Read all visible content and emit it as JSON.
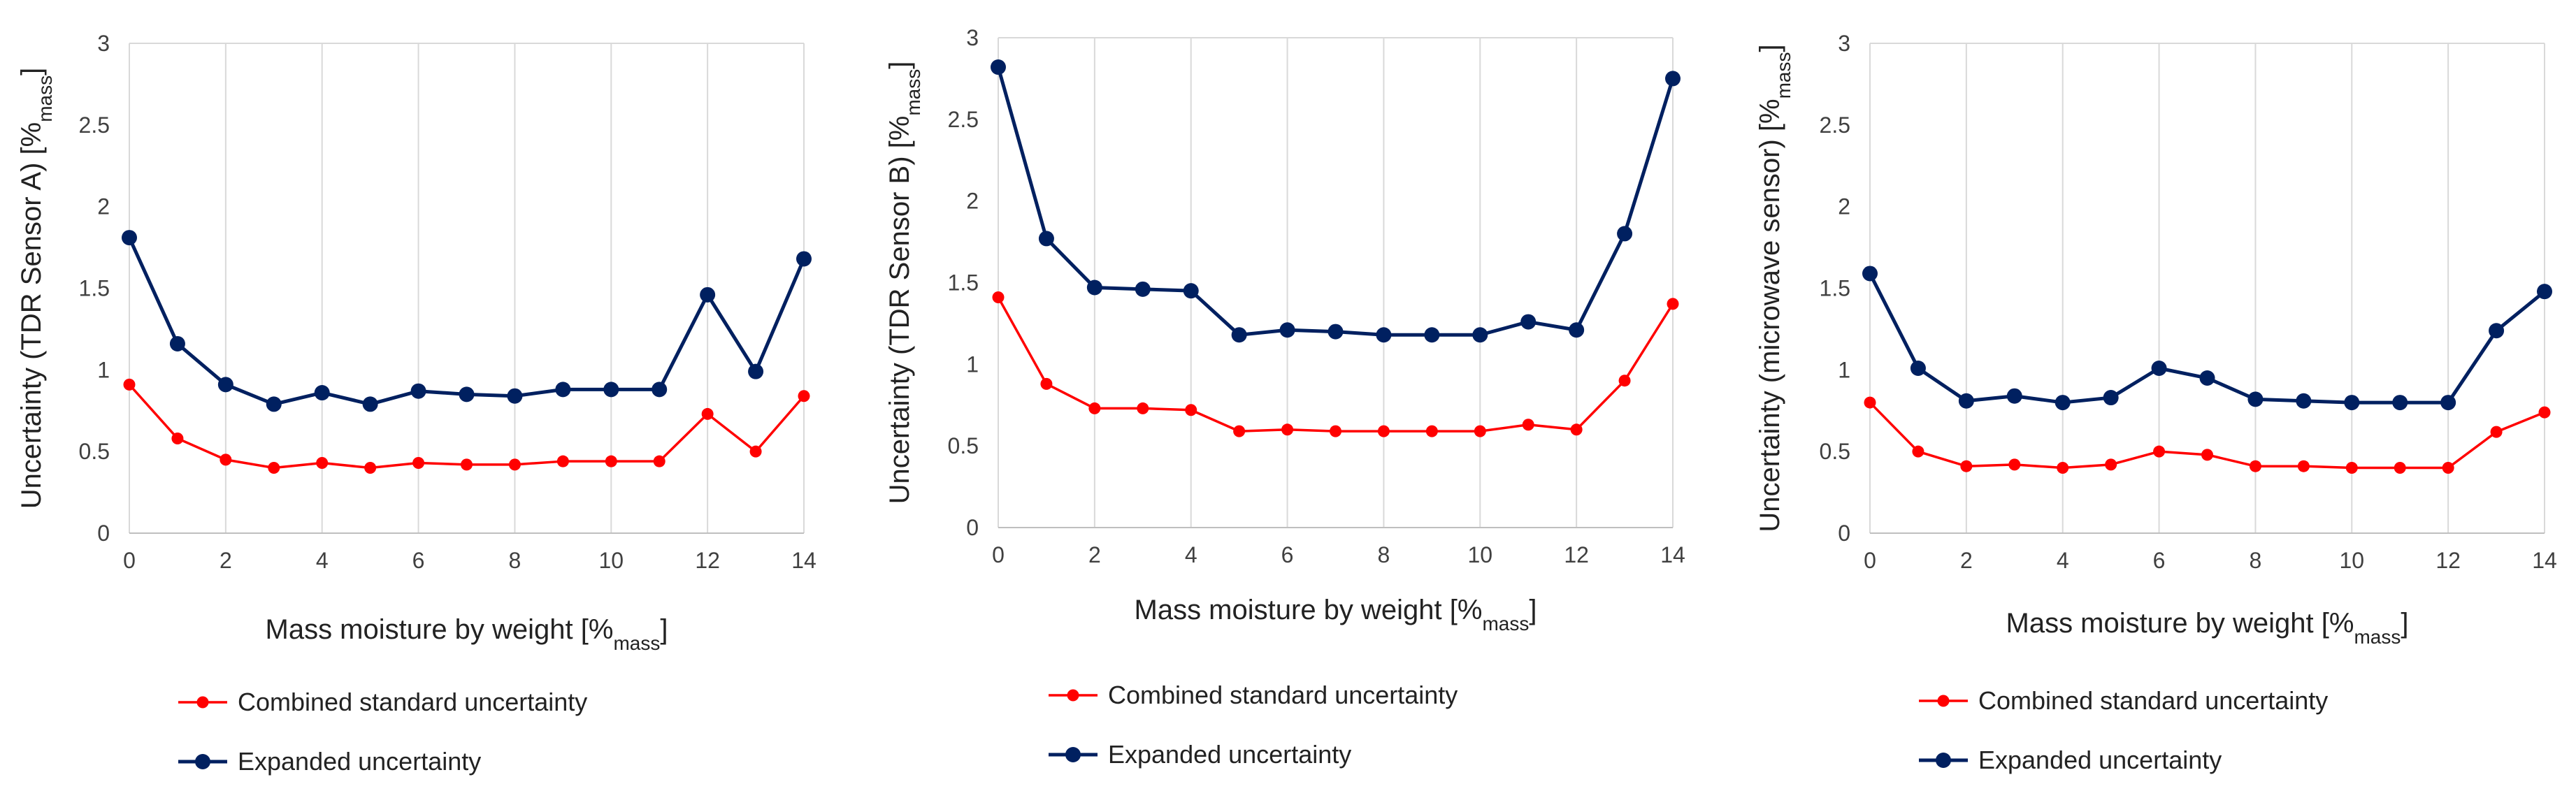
{
  "chart_data": [
    {
      "type": "line",
      "title": "",
      "xlabel": "Mass moisture by weight [%",
      "xlabel_sub": "mass",
      "xlabel_end": "]",
      "ylabel": "Uncertainty (TDR Sensor A) [%",
      "ylabel_sub": "mass",
      "ylabel_end": "]",
      "xlim": [
        0,
        14
      ],
      "ylim": [
        0,
        3
      ],
      "grid": "vertical",
      "x_ticks": [
        "0",
        "2",
        "4",
        "6",
        "8",
        "10",
        "12",
        "14"
      ],
      "y_ticks": [
        "0",
        "0.5",
        "1",
        "1.5",
        "2",
        "2.5",
        "3"
      ],
      "x": [
        0,
        1,
        2,
        3,
        4,
        5,
        6,
        7,
        8,
        9,
        10,
        11,
        12,
        13,
        14
      ],
      "legend_position": "bottom",
      "series": [
        {
          "name": "Combined standard uncertainty",
          "color": "#ff0000",
          "values": [
            0.91,
            0.58,
            0.45,
            0.4,
            0.43,
            0.4,
            0.43,
            0.42,
            0.42,
            0.44,
            0.44,
            0.44,
            0.73,
            0.5,
            0.84
          ]
        },
        {
          "name": "Expanded uncertainty",
          "color": "#002060",
          "values": [
            1.81,
            1.16,
            0.91,
            0.79,
            0.86,
            0.79,
            0.87,
            0.85,
            0.84,
            0.88,
            0.88,
            0.88,
            1.46,
            0.99,
            1.68
          ]
        }
      ]
    },
    {
      "type": "line",
      "title": "",
      "xlabel": "Mass moisture by weight [%",
      "xlabel_sub": "mass",
      "xlabel_end": "]",
      "ylabel": "Uncertainty (TDR Sensor B) [%",
      "ylabel_sub": "mass",
      "ylabel_end": "]",
      "xlim": [
        0,
        14
      ],
      "ylim": [
        0,
        3
      ],
      "grid": "vertical",
      "x_ticks": [
        "0",
        "2",
        "4",
        "6",
        "8",
        "10",
        "12",
        "14"
      ],
      "y_ticks": [
        "0",
        "0.5",
        "1",
        "1.5",
        "2",
        "2.5",
        "3"
      ],
      "x": [
        0,
        1,
        2,
        3,
        4,
        5,
        6,
        7,
        8,
        9,
        10,
        11,
        12,
        13,
        14
      ],
      "legend_position": "bottom",
      "series": [
        {
          "name": "Combined standard uncertainty",
          "color": "#ff0000",
          "values": [
            1.41,
            0.88,
            0.73,
            0.73,
            0.72,
            0.59,
            0.6,
            0.59,
            0.59,
            0.59,
            0.59,
            0.63,
            0.6,
            0.9,
            1.37
          ]
        },
        {
          "name": "Expanded uncertainty",
          "color": "#002060",
          "values": [
            2.82,
            1.77,
            1.47,
            1.46,
            1.45,
            1.18,
            1.21,
            1.2,
            1.18,
            1.18,
            1.18,
            1.26,
            1.21,
            1.8,
            2.75
          ]
        }
      ]
    },
    {
      "type": "line",
      "title": "",
      "xlabel": "Mass moisture by weight [%",
      "xlabel_sub": "mass",
      "xlabel_end": "]",
      "ylabel": "Uncertainty (microwave sensor) [%",
      "ylabel_sub": "mass",
      "ylabel_end": "]",
      "xlim": [
        0,
        14
      ],
      "ylim": [
        0,
        3
      ],
      "grid": "vertical",
      "x_ticks": [
        "0",
        "2",
        "4",
        "6",
        "8",
        "10",
        "12",
        "14"
      ],
      "y_ticks": [
        "0",
        "0.5",
        "1",
        "1.5",
        "2",
        "2.5",
        "3"
      ],
      "x": [
        0,
        1,
        2,
        3,
        4,
        5,
        6,
        7,
        8,
        9,
        10,
        11,
        12,
        13,
        14
      ],
      "legend_position": "bottom",
      "series": [
        {
          "name": "Combined standard uncertainty",
          "color": "#ff0000",
          "values": [
            0.8,
            0.5,
            0.41,
            0.42,
            0.4,
            0.42,
            0.5,
            0.48,
            0.41,
            0.41,
            0.4,
            0.4,
            0.4,
            0.62,
            0.74
          ]
        },
        {
          "name": "Expanded uncertainty",
          "color": "#002060",
          "values": [
            1.59,
            1.01,
            0.81,
            0.84,
            0.8,
            0.83,
            1.01,
            0.95,
            0.82,
            0.81,
            0.8,
            0.8,
            0.8,
            1.24,
            1.48
          ]
        }
      ]
    }
  ]
}
